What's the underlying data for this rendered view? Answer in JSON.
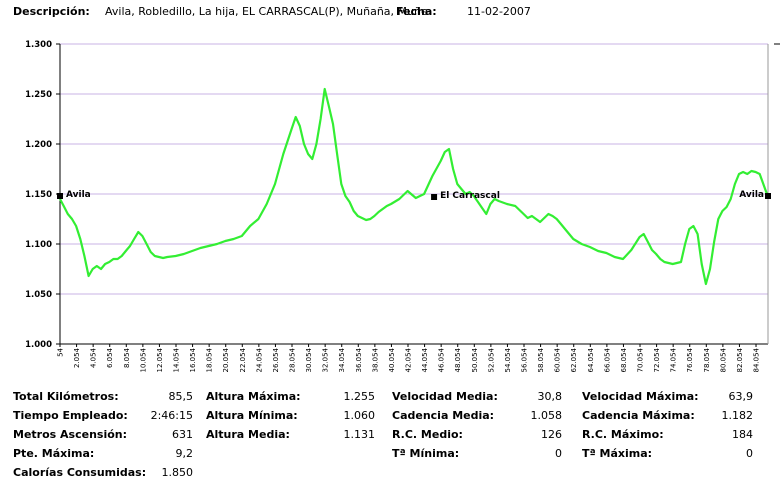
{
  "header": {
    "descripcion_label": "Descripción:",
    "descripcion_value": "Avila, Robledillo, La hija, EL CARRASCAL(P), Muñaña, Muñe",
    "fecha_label": "Fecha:",
    "fecha_value": "11-02-2007"
  },
  "chart_data": {
    "type": "line",
    "title": "",
    "xlabel": "",
    "ylabel": "",
    "ylim": [
      1000,
      1300
    ],
    "y_ticks": [
      "1.000",
      "1.050",
      "1.100",
      "1.150",
      "1.200",
      "1.250",
      "1.300"
    ],
    "x_ticks": [
      "54",
      "2.054",
      "4.054",
      "6.054",
      "8.054",
      "10.054",
      "12.054",
      "14.054",
      "16.054",
      "18.054",
      "20.054",
      "22.054",
      "24.054",
      "26.054",
      "28.054",
      "30.054",
      "32.054",
      "34.054",
      "36.054",
      "38.054",
      "40.054",
      "42.054",
      "44.054",
      "46.054",
      "48.054",
      "50.054",
      "52.054",
      "54.054",
      "56.054",
      "58.054",
      "60.054",
      "62.054",
      "64.054",
      "66.054",
      "68.054",
      "70.054",
      "72.054",
      "74.054",
      "76.054",
      "78.054",
      "80.054",
      "82.054",
      "84.054"
    ],
    "grid": "horizontal",
    "line_color": "#33ee33",
    "x": [
      54,
      500,
      1000,
      1500,
      2000,
      2500,
      3000,
      3500,
      4000,
      4500,
      5000,
      5500,
      6000,
      6500,
      7000,
      7500,
      8000,
      8500,
      9000,
      9500,
      10000,
      10500,
      11000,
      11500,
      12000,
      12500,
      13000,
      14000,
      15000,
      16000,
      17000,
      18000,
      19000,
      20000,
      21000,
      22000,
      23000,
      24000,
      25000,
      26000,
      27000,
      28000,
      28500,
      29000,
      29500,
      30000,
      30500,
      31000,
      31500,
      32000,
      32500,
      33000,
      33500,
      34000,
      34500,
      35000,
      35500,
      36000,
      36500,
      37000,
      37500,
      38000,
      38500,
      39000,
      39500,
      40000,
      41000,
      42000,
      43000,
      44000,
      45000,
      46000,
      46500,
      47000,
      47500,
      48000,
      48500,
      49000,
      49500,
      50000,
      50500,
      51000,
      51500,
      52000,
      52500,
      53000,
      54000,
      55000,
      56000,
      56500,
      57000,
      58000,
      59000,
      59500,
      60000,
      60500,
      61000,
      62000,
      63000,
      64000,
      65000,
      66000,
      67000,
      68000,
      69000,
      70000,
      70500,
      71000,
      71500,
      72000,
      72500,
      73000,
      74000,
      75000,
      75500,
      76000,
      76500,
      77000,
      77500,
      78000,
      78500,
      79000,
      79500,
      80000,
      80500,
      81000,
      81500,
      82000,
      82500,
      83000,
      83500,
      84000,
      84500,
      85500
    ],
    "values": [
      1145,
      1138,
      1130,
      1125,
      1118,
      1105,
      1088,
      1068,
      1075,
      1078,
      1075,
      1080,
      1082,
      1085,
      1085,
      1088,
      1093,
      1098,
      1105,
      1112,
      1108,
      1100,
      1092,
      1088,
      1087,
      1086,
      1087,
      1088,
      1090,
      1093,
      1096,
      1098,
      1100,
      1103,
      1105,
      1108,
      1118,
      1125,
      1140,
      1160,
      1190,
      1215,
      1227,
      1218,
      1200,
      1190,
      1185,
      1200,
      1225,
      1255,
      1238,
      1220,
      1190,
      1160,
      1148,
      1142,
      1133,
      1128,
      1126,
      1124,
      1125,
      1128,
      1132,
      1135,
      1138,
      1140,
      1145,
      1153,
      1146,
      1150,
      1168,
      1183,
      1192,
      1195,
      1175,
      1160,
      1155,
      1150,
      1152,
      1148,
      1142,
      1136,
      1130,
      1140,
      1145,
      1143,
      1140,
      1138,
      1130,
      1126,
      1128,
      1122,
      1130,
      1128,
      1125,
      1120,
      1115,
      1105,
      1100,
      1097,
      1093,
      1091,
      1087,
      1085,
      1094,
      1107,
      1110,
      1102,
      1094,
      1090,
      1085,
      1082,
      1080,
      1082,
      1100,
      1115,
      1118,
      1110,
      1080,
      1060,
      1075,
      1102,
      1125,
      1133,
      1137,
      1145,
      1160,
      1170,
      1172,
      1170,
      1173,
      1172,
      1170,
      1147
    ]
  },
  "chart_labels": [
    {
      "text": "Avila",
      "x": 54,
      "y": 1148
    },
    {
      "text": "El Carrascal",
      "x": 45200,
      "y": 1147
    },
    {
      "text": "Avila",
      "x": 85500,
      "y": 1148
    }
  ],
  "stats": {
    "col1": [
      {
        "label": "Total Kilómetros:",
        "value": "85,5"
      },
      {
        "label": "Tiempo Empleado:",
        "value": "2:46:15"
      },
      {
        "label": "Metros Ascensión:",
        "value": "631"
      },
      {
        "label": "Pte. Máxima:",
        "value": "9,2"
      },
      {
        "label": "Calorías Consumidas:",
        "value": "1.850"
      }
    ],
    "col2": [
      {
        "label": "Altura Máxima:",
        "value": "1.255"
      },
      {
        "label": "Altura Mínima:",
        "value": "1.060"
      },
      {
        "label": "Altura Media:",
        "value": "1.131"
      }
    ],
    "col3": [
      {
        "label": "Velocidad Media:",
        "value": "30,8"
      },
      {
        "label": "Cadencia Media:",
        "value": "1.058"
      },
      {
        "label": "R.C. Medio:",
        "value": "126"
      },
      {
        "label": "Tª Mínima:",
        "value": "0"
      }
    ],
    "col4": [
      {
        "label": "Velocidad Máxima:",
        "value": "63,9"
      },
      {
        "label": "Cadencia Máxima:",
        "value": "1.182"
      },
      {
        "label": "R.C.  Máximo:",
        "value": "184"
      },
      {
        "label": "Tª Máxima:",
        "value": "0"
      }
    ]
  }
}
